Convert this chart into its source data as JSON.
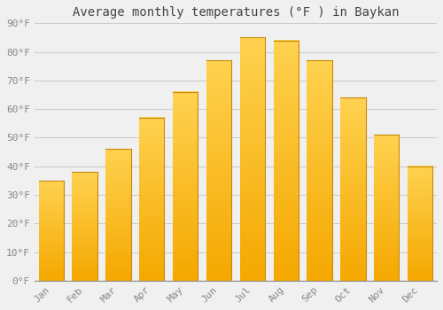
{
  "title": "Average monthly temperatures (°F ) in Baykan",
  "months": [
    "Jan",
    "Feb",
    "Mar",
    "Apr",
    "May",
    "Jun",
    "Jul",
    "Aug",
    "Sep",
    "Oct",
    "Nov",
    "Dec"
  ],
  "values": [
    35,
    38,
    46,
    57,
    66,
    77,
    85,
    84,
    77,
    64,
    51,
    40
  ],
  "bar_color_bottom": "#F5A800",
  "bar_color_top": "#FFD060",
  "bar_edge_color": "#C8880A",
  "ylim": [
    0,
    90
  ],
  "yticks": [
    0,
    10,
    20,
    30,
    40,
    50,
    60,
    70,
    80,
    90
  ],
  "ytick_labels": [
    "0°F",
    "10°F",
    "20°F",
    "30°F",
    "40°F",
    "50°F",
    "60°F",
    "70°F",
    "80°F",
    "90°F"
  ],
  "background_color": "#F0F0F0",
  "grid_color": "#CCCCCC",
  "title_fontsize": 10,
  "tick_fontsize": 8,
  "title_color": "#444444",
  "tick_color": "#888888",
  "bar_width": 0.75
}
